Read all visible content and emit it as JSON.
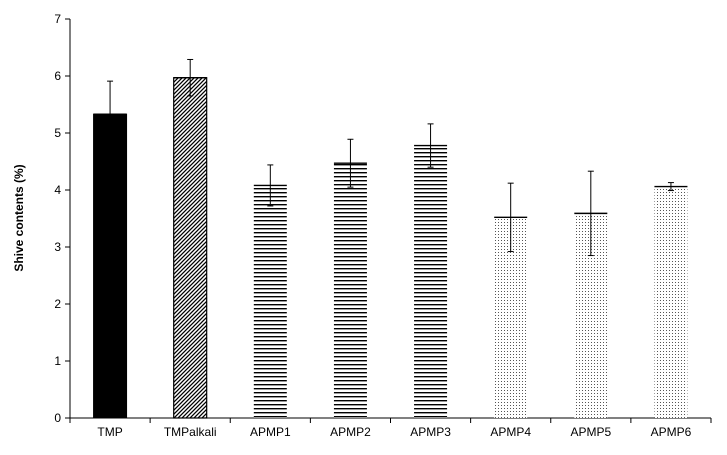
{
  "chart_data": {
    "type": "bar",
    "title": "",
    "xlabel": "",
    "ylabel": "Shive contents (%)",
    "ylim": [
      0,
      7
    ],
    "yticks": [
      0,
      1,
      2,
      3,
      4,
      5,
      6,
      7
    ],
    "grid": false,
    "legend": "none",
    "categories": [
      "TMP",
      "TMPalkali",
      "APMP1",
      "APMP2",
      "APMP3",
      "APMP4",
      "APMP5",
      "APMP6"
    ],
    "values": [
      5.33,
      5.97,
      4.08,
      4.47,
      4.78,
      3.52,
      3.59,
      4.06
    ],
    "error": [
      0.58,
      0.32,
      0.36,
      0.42,
      0.38,
      0.6,
      0.74,
      0.07
    ],
    "fills": [
      "solid",
      "diagonal",
      "horizontal",
      "horizontal",
      "horizontal",
      "dotted",
      "dotted",
      "dotted"
    ]
  },
  "colors": {
    "bar_ink": "#000000",
    "axis": "#000000",
    "background": "#ffffff"
  }
}
